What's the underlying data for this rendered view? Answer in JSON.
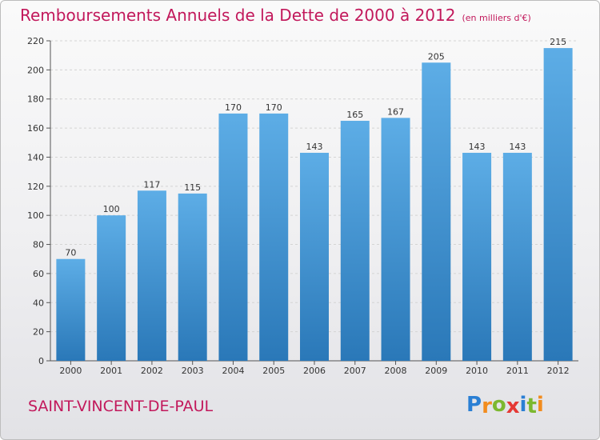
{
  "title": "Remboursements Annuels de la Dette de 2000 à 2012",
  "subtitle": "(en milliers d'€)",
  "commune": "SAINT-VINCENT-DE-PAUL",
  "logo": {
    "letters": [
      "P",
      "r",
      "o",
      "x",
      "i",
      "t",
      "i"
    ],
    "colors": [
      "#2a7fd4",
      "#f28c1e",
      "#7cb82f",
      "#e53935",
      "#2a7fd4",
      "#7cb82f",
      "#f28c1e"
    ]
  },
  "colors": {
    "title": "#c2185b",
    "bar_top": "#5dade6",
    "bar_bottom": "#2a78b8",
    "grid": "#d4d4d4"
  },
  "chart_data": {
    "type": "bar",
    "categories": [
      "2000",
      "2001",
      "2002",
      "2003",
      "2004",
      "2005",
      "2006",
      "2007",
      "2008",
      "2009",
      "2010",
      "2011",
      "2012"
    ],
    "values": [
      70,
      100,
      117,
      115,
      170,
      170,
      143,
      165,
      167,
      205,
      143,
      143,
      215
    ],
    "ylim": [
      0,
      220
    ],
    "yticks": [
      0,
      20,
      40,
      60,
      80,
      100,
      120,
      140,
      160,
      180,
      200,
      220
    ],
    "grid": "horizontal dashed",
    "title": "Remboursements Annuels de la Dette de 2000 à 2012",
    "subtitle": "(en milliers d'€)",
    "xlabel": "",
    "ylabel": ""
  }
}
